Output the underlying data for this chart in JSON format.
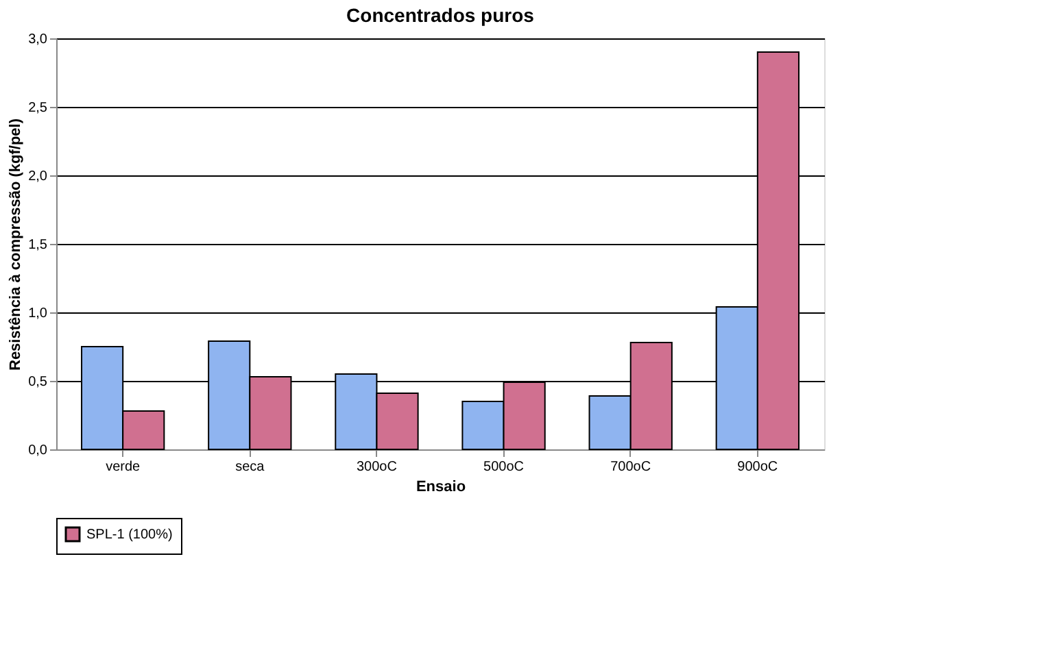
{
  "chart_data": {
    "type": "bar",
    "title": "Concentrados puros",
    "xlabel": "Ensaio",
    "ylabel": "Resistência à compressão (kgf/pel)",
    "categories": [
      "verde",
      "seca",
      "300oC",
      "500oC",
      "700oC",
      "900oC"
    ],
    "series": [
      {
        "color": "#8fb4f0",
        "values": [
          0.75,
          0.79,
          0.55,
          0.35,
          0.39,
          1.04
        ]
      },
      {
        "name": "SPL-1 (100%)",
        "color": "#d07090",
        "values": [
          0.28,
          0.53,
          0.41,
          0.49,
          0.78,
          2.9
        ]
      }
    ],
    "ylim": [
      0,
      3
    ],
    "yticks": [
      {
        "value": 0,
        "label": "0,0"
      },
      {
        "value": 0.5,
        "label": "0,5"
      },
      {
        "value": 1,
        "label": "1,0"
      },
      {
        "value": 1.5,
        "label": "1,5"
      },
      {
        "value": 2,
        "label": "2,0"
      },
      {
        "value": 2.5,
        "label": "2,5"
      },
      {
        "value": 3,
        "label": "3,0"
      }
    ],
    "grid": "y",
    "legend": "bottom"
  }
}
